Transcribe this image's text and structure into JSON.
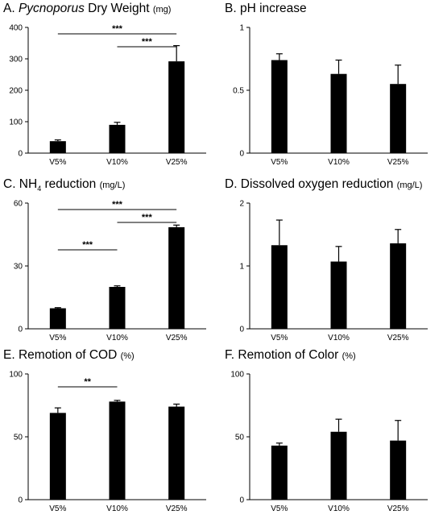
{
  "chart_data": [
    {
      "type": "bar",
      "title": {
        "letter": "A.",
        "italic": "Pycnoporus",
        "rest": " Dry Weight ",
        "unit": "(mg)"
      },
      "categories": [
        "V5%",
        "V10%",
        "V25%"
      ],
      "values": [
        38,
        90,
        292
      ],
      "errors": [
        4,
        8,
        50
      ],
      "ylim": [
        0,
        400
      ],
      "yticks": [
        "0",
        "100",
        "200",
        "300",
        "400"
      ],
      "significance": [
        {
          "from": 0,
          "to": 2,
          "label": "***"
        },
        {
          "from": 1,
          "to": 2,
          "label": "***"
        }
      ],
      "bar_color": "#000000"
    },
    {
      "type": "bar",
      "title": {
        "letter": "B.",
        "rest": " pH increase"
      },
      "categories": [
        "V5%",
        "V10%",
        "V25%"
      ],
      "values": [
        0.74,
        0.63,
        0.55
      ],
      "errors": [
        0.05,
        0.11,
        0.15
      ],
      "ylim": [
        0,
        1
      ],
      "yticks": [
        "0",
        "0.5",
        "1"
      ],
      "significance": [],
      "bar_color": "#000000"
    },
    {
      "type": "bar",
      "title": {
        "letter": "C.",
        "rest": " NH",
        "sub": "4",
        "rest2": " reduction ",
        "unit": "(mg/L)"
      },
      "categories": [
        "V5%",
        "V10%",
        "V25%"
      ],
      "values": [
        9.8,
        20,
        48.5
      ],
      "errors": [
        0.3,
        0.5,
        1
      ],
      "ylim": [
        0,
        60
      ],
      "yticks": [
        "0",
        "30",
        "60"
      ],
      "significance": [
        {
          "from": 0,
          "to": 2,
          "label": "***"
        },
        {
          "from": 1,
          "to": 2,
          "label": "***"
        },
        {
          "from": 0,
          "to": 1,
          "label": "***"
        }
      ],
      "bar_color": "#000000"
    },
    {
      "type": "bar",
      "title": {
        "letter": "D.",
        "rest": " Dissolved oxygen reduction ",
        "unit": "(mg/L)"
      },
      "categories": [
        "V5%",
        "V10%",
        "V25%"
      ],
      "values": [
        1.33,
        1.07,
        1.36
      ],
      "errors": [
        0.4,
        0.24,
        0.22
      ],
      "ylim": [
        0,
        2
      ],
      "yticks": [
        "0",
        "1",
        "2"
      ],
      "significance": [],
      "bar_color": "#000000"
    },
    {
      "type": "bar",
      "title": {
        "letter": "E.",
        "rest": " Remotion of COD ",
        "unit": "(%)"
      },
      "categories": [
        "V5%",
        "V10%",
        "V25%"
      ],
      "values": [
        69,
        78,
        74
      ],
      "errors": [
        4,
        1,
        2
      ],
      "ylim": [
        0,
        100
      ],
      "yticks": [
        "0",
        "50",
        "100"
      ],
      "significance": [
        {
          "from": 0,
          "to": 1,
          "label": "**"
        }
      ],
      "bar_color": "#000000"
    },
    {
      "type": "bar",
      "title": {
        "letter": "F.",
        "rest": " Remotion of Color ",
        "unit": "(%)"
      },
      "categories": [
        "V5%",
        "V10%",
        "V25%"
      ],
      "values": [
        43,
        54,
        47
      ],
      "errors": [
        2,
        10,
        16
      ],
      "ylim": [
        0,
        100
      ],
      "yticks": [
        "0",
        "50",
        "100"
      ],
      "significance": [],
      "bar_color": "#000000"
    }
  ]
}
